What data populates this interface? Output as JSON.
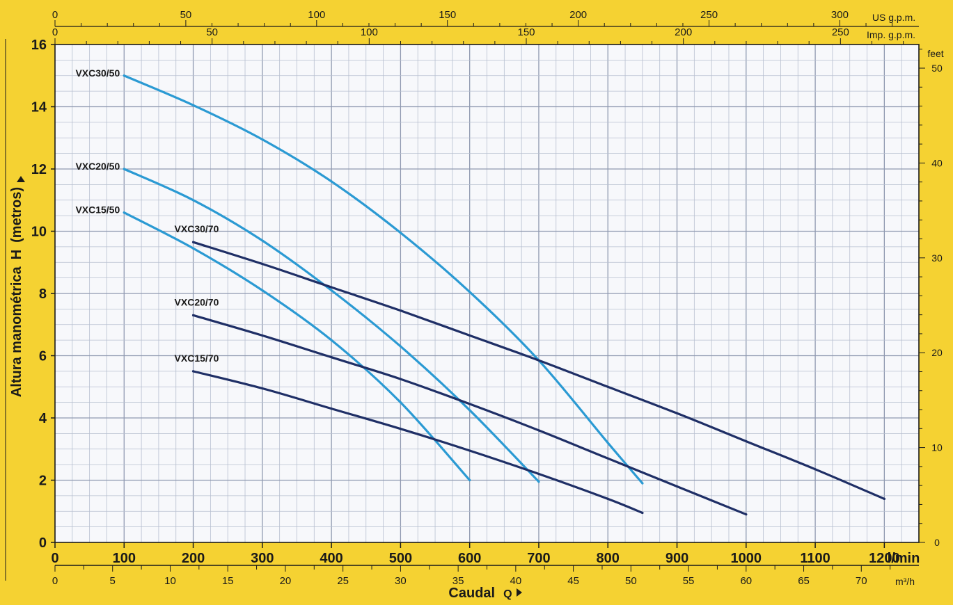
{
  "colors": {
    "background": "#f5d232",
    "plot_bg": "#f7f8fb",
    "grid_minor": "#b7bfd0",
    "grid_major": "#8f99b0",
    "series_50": "#2b9ad3",
    "series_70": "#1f2f66"
  },
  "chart_data": {
    "type": "line",
    "x_unit": "l/min",
    "y_label_text": "Altura manométrica",
    "y_label_symbol": "H",
    "y_label_unit": "(metros)",
    "x_label_text": "Caudal",
    "x_label_symbol": "Q",
    "xlim": [
      0,
      1250
    ],
    "ylim": [
      0,
      16
    ],
    "x_ticks": [
      0,
      100,
      200,
      300,
      400,
      500,
      600,
      700,
      800,
      900,
      1000,
      1100,
      1200
    ],
    "y_ticks": [
      0,
      2,
      4,
      6,
      8,
      10,
      12,
      14,
      16
    ],
    "grid": true,
    "secondary_axes": {
      "m3h": {
        "unit": "m³/h",
        "ticks": [
          0,
          5,
          10,
          15,
          20,
          25,
          30,
          35,
          40,
          45,
          50,
          55,
          60,
          65,
          70
        ]
      },
      "feet": {
        "unit": "feet",
        "ticks": [
          0,
          10,
          20,
          30,
          40,
          50
        ]
      },
      "us_gpm": {
        "unit": "US g.p.m.",
        "ticks": [
          0,
          50,
          100,
          150,
          200,
          250,
          300
        ]
      },
      "imp_gpm": {
        "unit": "Imp. g.p.m.",
        "ticks": [
          0,
          50,
          100,
          150,
          200,
          250
        ]
      }
    },
    "series": [
      {
        "name": "VXC30/50",
        "group": "50",
        "x": [
          100,
          200,
          300,
          400,
          500,
          600,
          700,
          800,
          850
        ],
        "y": [
          15.0,
          14.05,
          12.95,
          11.6,
          9.95,
          8.05,
          5.85,
          3.2,
          1.9
        ]
      },
      {
        "name": "VXC20/50",
        "group": "50",
        "x": [
          100,
          200,
          300,
          400,
          500,
          600,
          700
        ],
        "y": [
          12.0,
          11.0,
          9.7,
          8.1,
          6.3,
          4.25,
          1.95
        ]
      },
      {
        "name": "VXC15/50",
        "group": "50",
        "x": [
          100,
          200,
          300,
          400,
          500,
          600
        ],
        "y": [
          10.6,
          9.45,
          8.1,
          6.5,
          4.5,
          2.0
        ]
      },
      {
        "name": "VXC30/70",
        "group": "70",
        "x": [
          200,
          300,
          400,
          500,
          600,
          700,
          800,
          900,
          1000,
          1100,
          1200
        ],
        "y": [
          9.65,
          8.95,
          8.2,
          7.45,
          6.65,
          5.85,
          5.0,
          4.15,
          3.25,
          2.35,
          1.4
        ]
      },
      {
        "name": "VXC20/70",
        "group": "70",
        "x": [
          200,
          300,
          400,
          500,
          600,
          700,
          800,
          900,
          1000
        ],
        "y": [
          7.3,
          6.65,
          5.95,
          5.25,
          4.45,
          3.6,
          2.7,
          1.8,
          0.9
        ]
      },
      {
        "name": "VXC15/70",
        "group": "70",
        "x": [
          200,
          300,
          400,
          500,
          600,
          700,
          800,
          850
        ],
        "y": [
          5.5,
          4.95,
          4.3,
          3.65,
          2.95,
          2.2,
          1.4,
          0.95
        ]
      }
    ]
  }
}
